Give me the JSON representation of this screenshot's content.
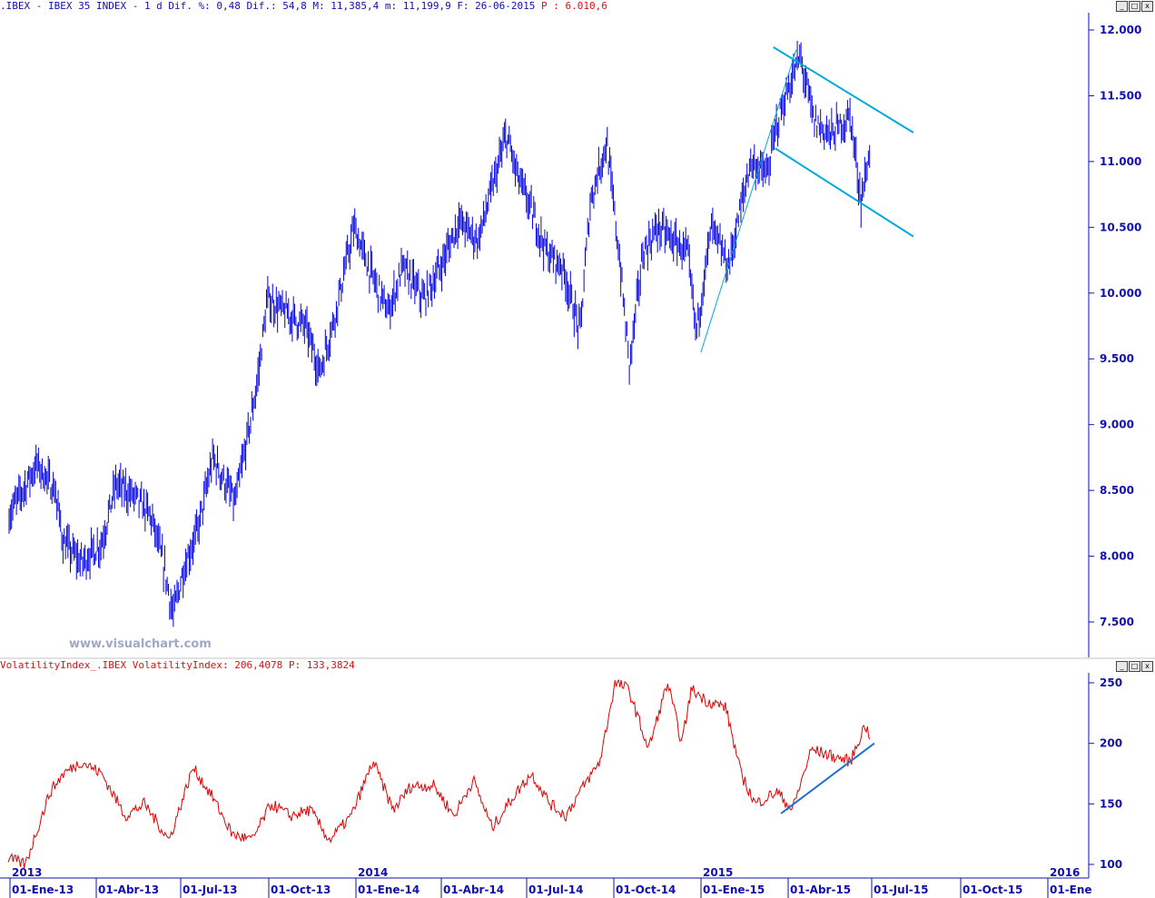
{
  "header_top": {
    "text": ".IBEX - IBEX 35 INDEX -  1 d Dif. %: 0,48 Dif.: 54,8 M: 11,385,4 m: 11,199,9 F: 26-06-2015",
    "p_text": "P : 6.010,6"
  },
  "header_bottom": {
    "text": "VolatilityIndex_.IBEX VolatilityIndex: 206,4078 P: 133,3824"
  },
  "watermark": "www.visualchart.com",
  "window_buttons": [
    "_",
    "□",
    "x"
  ],
  "colors": {
    "price": "#0000e0",
    "volatility": "#e00000",
    "trend": "#00aadd",
    "trend_dark": "#1f6fd0",
    "axis": "#1010b0"
  },
  "chart_data": [
    {
      "type": "line",
      "title": "IBEX 35 INDEX",
      "x_tick_labels": [
        "01-Ene-13",
        "01-Abr-13",
        "01-Jul-13",
        "01-Oct-13",
        "01-Ene-14",
        "01-Abr-14",
        "01-Jul-14",
        "01-Oct-14",
        "01-Ene-15",
        "01-Abr-15",
        "01-Jul-15",
        "01-Oct-15",
        "01-Ene"
      ],
      "year_labels": [
        "2013",
        "2014",
        "2015",
        "2016"
      ],
      "y_tick_labels": [
        "12.000",
        "11.500",
        "11.000",
        "10.500",
        "10.000",
        "9.500",
        "9.000",
        "8.500",
        "8.000",
        "7.500"
      ],
      "ylim": [
        7300,
        12200
      ],
      "series": [
        {
          "x": [
            "2013-01-02",
            "2013-02-01",
            "2013-02-20",
            "2013-03-01",
            "2013-03-20",
            "2013-04-10",
            "2013-04-25",
            "2013-05-15",
            "2013-06-01",
            "2013-06-15",
            "2013-06-24",
            "2013-07-05",
            "2013-07-20",
            "2013-08-05",
            "2013-08-28",
            "2013-09-10",
            "2013-09-20",
            "2013-10-01",
            "2013-10-20",
            "2013-11-10",
            "2013-11-25",
            "2013-12-10",
            "2013-12-31",
            "2014-01-15",
            "2014-02-05",
            "2014-02-20",
            "2014-03-14",
            "2014-04-01",
            "2014-04-20",
            "2014-05-10",
            "2014-05-25",
            "2014-06-09",
            "2014-06-20",
            "2014-07-01",
            "2014-07-22",
            "2014-08-07",
            "2014-08-25",
            "2014-09-05",
            "2014-09-22",
            "2014-10-05",
            "2014-10-16",
            "2014-10-30",
            "2014-11-15",
            "2014-12-01",
            "2014-12-16",
            "2014-12-25",
            "2015-01-10",
            "2015-01-28",
            "2015-02-20",
            "2015-03-10",
            "2015-03-20",
            "2015-04-13",
            "2015-04-28",
            "2015-05-15",
            "2015-06-05",
            "2015-06-16",
            "2015-06-26"
          ],
          "values": [
            8300,
            8700,
            8500,
            8100,
            7950,
            8100,
            8550,
            8450,
            8300,
            7900,
            7550,
            7900,
            8200,
            8750,
            8400,
            8900,
            9300,
            9950,
            9850,
            9750,
            9400,
            9800,
            10500,
            10200,
            9850,
            10200,
            9950,
            10200,
            10550,
            10400,
            10800,
            11200,
            10900,
            10700,
            10300,
            10200,
            9700,
            10700,
            11150,
            10300,
            9450,
            10300,
            10500,
            10400,
            10300,
            9700,
            10500,
            10200,
            11000,
            10900,
            11300,
            11800,
            11300,
            11200,
            11350,
            10700,
            11100
          ]
        }
      ]
    },
    {
      "type": "line",
      "title": "VolatilityIndex",
      "y_tick_labels": [
        "250",
        "200",
        "150",
        "100"
      ],
      "ylim": [
        90,
        260
      ],
      "series": [
        {
          "x": [
            "2013-01-02",
            "2013-01-20",
            "2013-02-15",
            "2013-03-01",
            "2013-03-20",
            "2013-04-10",
            "2013-05-05",
            "2013-05-25",
            "2013-06-20",
            "2013-07-15",
            "2013-08-05",
            "2013-08-25",
            "2013-09-15",
            "2013-10-05",
            "2013-10-25",
            "2013-11-15",
            "2013-12-05",
            "2013-12-28",
            "2014-01-20",
            "2014-02-10",
            "2014-03-01",
            "2014-03-25",
            "2014-04-15",
            "2014-05-05",
            "2014-05-25",
            "2014-06-15",
            "2014-07-05",
            "2014-07-25",
            "2014-08-10",
            "2014-08-25",
            "2014-09-15",
            "2014-10-01",
            "2014-10-15",
            "2014-11-05",
            "2014-11-25",
            "2014-12-10",
            "2014-12-20",
            "2015-01-05",
            "2015-01-25",
            "2015-02-10",
            "2015-02-25",
            "2015-03-20",
            "2015-04-05",
            "2015-04-25",
            "2015-05-15",
            "2015-06-05",
            "2015-06-20",
            "2015-06-26"
          ],
          "values": [
            105,
            100,
            160,
            175,
            185,
            175,
            140,
            150,
            120,
            180,
            155,
            125,
            120,
            150,
            140,
            145,
            120,
            140,
            185,
            145,
            165,
            165,
            140,
            170,
            130,
            155,
            175,
            150,
            140,
            160,
            185,
            250,
            245,
            195,
            250,
            200,
            245,
            235,
            230,
            175,
            150,
            160,
            145,
            195,
            190,
            185,
            215,
            206
          ]
        }
      ]
    }
  ]
}
